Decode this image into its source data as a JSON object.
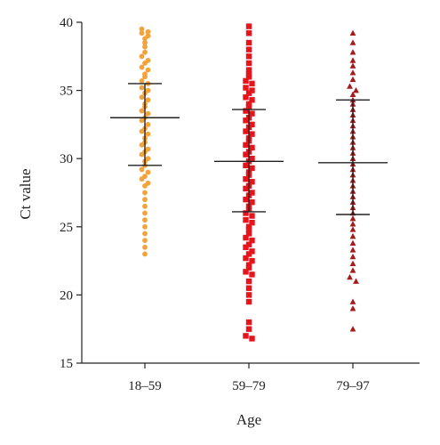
{
  "chart_data": {
    "type": "scatter",
    "xlabel": "Age",
    "ylabel": "Ct value",
    "ylim": [
      15,
      40
    ],
    "yticks": [
      15,
      20,
      25,
      30,
      35,
      40
    ],
    "categories": [
      "18–59",
      "59–79",
      "79–97"
    ],
    "grid": false,
    "series": [
      {
        "category": "18–59",
        "marker": "circle",
        "color": "#f4a23a",
        "mean": 33.0,
        "sd_upper": 35.5,
        "sd_lower": 29.5,
        "values": [
          39.5,
          39.3,
          39.2,
          39.0,
          38.8,
          38.5,
          38.2,
          37.8,
          37.5,
          37.2,
          37.0,
          36.7,
          36.5,
          36.2,
          36.0,
          35.7,
          35.5,
          35.2,
          35.0,
          34.8,
          34.5,
          34.3,
          34.0,
          33.8,
          33.5,
          33.3,
          33.0,
          32.8,
          32.5,
          32.2,
          32.0,
          31.8,
          31.5,
          31.2,
          31.0,
          30.7,
          30.5,
          30.3,
          30.0,
          29.8,
          29.5,
          29.2,
          29.0,
          28.7,
          28.5,
          28.2,
          28.0,
          27.5,
          27.0,
          26.5,
          26.0,
          25.5,
          25.0,
          24.5,
          24.0,
          23.5,
          23.0
        ]
      },
      {
        "category": "59–79",
        "marker": "square",
        "color": "#e8141c",
        "mean": 29.8,
        "sd_upper": 33.6,
        "sd_lower": 26.1,
        "values": [
          39.7,
          39.2,
          38.5,
          38.0,
          37.5,
          37.0,
          36.5,
          36.2,
          36.0,
          35.7,
          35.5,
          35.2,
          35.0,
          34.8,
          34.5,
          34.3,
          34.0,
          33.8,
          33.5,
          33.3,
          33.0,
          32.8,
          32.5,
          32.3,
          32.0,
          31.8,
          31.5,
          31.3,
          31.0,
          30.8,
          30.5,
          30.3,
          30.0,
          29.8,
          29.5,
          29.3,
          29.0,
          28.8,
          28.5,
          28.3,
          28.0,
          27.8,
          27.5,
          27.3,
          27.0,
          26.8,
          26.5,
          26.3,
          26.0,
          25.8,
          25.5,
          25.3,
          25.0,
          24.8,
          24.5,
          24.2,
          24.0,
          23.7,
          23.5,
          23.2,
          23.0,
          22.7,
          22.5,
          22.2,
          22.0,
          21.7,
          21.5,
          21.0,
          20.5,
          20.0,
          19.5,
          18.0,
          17.5,
          17.0,
          16.8
        ]
      },
      {
        "category": "79–97",
        "marker": "triangle",
        "color": "#a61c1c",
        "mean": 29.7,
        "sd_upper": 34.3,
        "sd_lower": 25.9,
        "values": [
          39.2,
          38.5,
          37.8,
          37.2,
          36.8,
          36.3,
          35.8,
          35.3,
          35.0,
          34.7,
          34.3,
          34.0,
          33.6,
          33.2,
          32.8,
          32.4,
          32.0,
          31.6,
          31.2,
          30.8,
          30.4,
          30.0,
          29.6,
          29.2,
          28.8,
          28.4,
          28.0,
          27.6,
          27.2,
          26.8,
          26.4,
          26.0,
          25.6,
          25.2,
          24.8,
          24.3,
          23.8,
          23.3,
          22.8,
          22.3,
          21.8,
          21.3,
          21.0,
          19.5,
          19.0,
          17.5
        ]
      }
    ]
  }
}
